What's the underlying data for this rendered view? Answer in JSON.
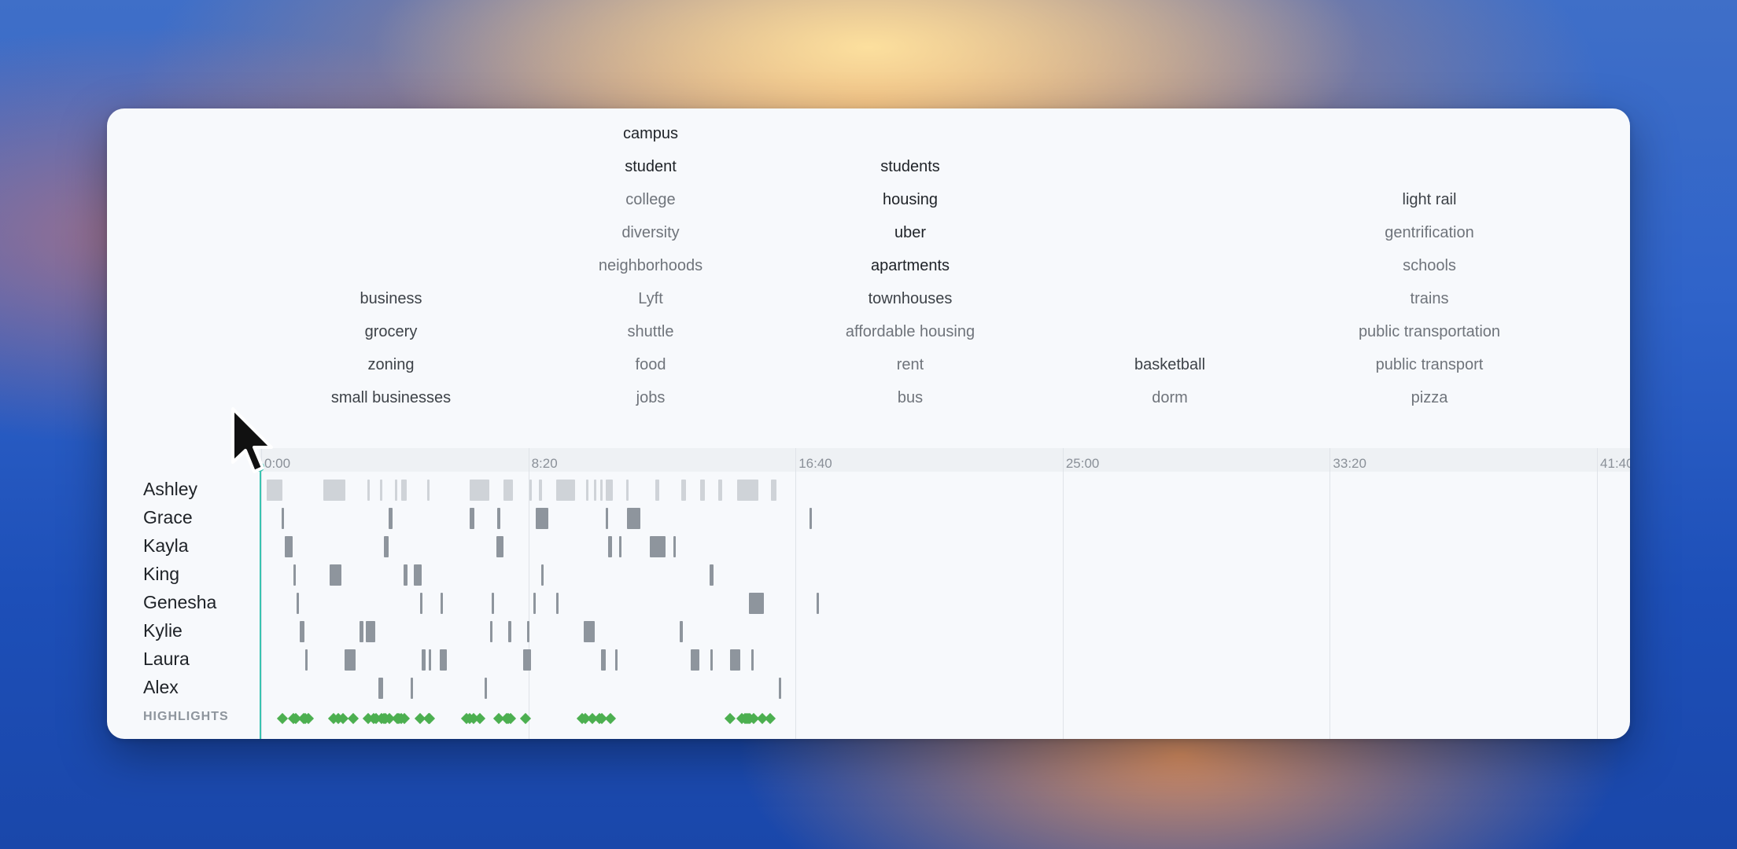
{
  "topic_columns": [
    {
      "center": 497,
      "words": [
        {
          "row": 5,
          "text": "business",
          "tone": "mid"
        },
        {
          "row": 6,
          "text": "grocery",
          "tone": "mid"
        },
        {
          "row": 7,
          "text": "zoning",
          "tone": "mid"
        },
        {
          "row": 8,
          "text": "small businesses",
          "tone": "mid"
        }
      ]
    },
    {
      "center": 827,
      "words": [
        {
          "row": 0,
          "text": "campus",
          "tone": "strong"
        },
        {
          "row": 1,
          "text": "student",
          "tone": "strong"
        },
        {
          "row": 2,
          "text": "college",
          "tone": "light"
        },
        {
          "row": 3,
          "text": "diversity",
          "tone": "light"
        },
        {
          "row": 4,
          "text": "neighborhoods",
          "tone": "light"
        },
        {
          "row": 5,
          "text": "Lyft",
          "tone": "light"
        },
        {
          "row": 6,
          "text": "shuttle",
          "tone": "light"
        },
        {
          "row": 7,
          "text": "food",
          "tone": "light"
        },
        {
          "row": 8,
          "text": "jobs",
          "tone": "light"
        }
      ]
    },
    {
      "center": 1157,
      "words": [
        {
          "row": 1,
          "text": "students",
          "tone": "strong"
        },
        {
          "row": 2,
          "text": "housing",
          "tone": "strong"
        },
        {
          "row": 3,
          "text": "uber",
          "tone": "strong"
        },
        {
          "row": 4,
          "text": "apartments",
          "tone": "strong"
        },
        {
          "row": 5,
          "text": "townhouses",
          "tone": "mid"
        },
        {
          "row": 6,
          "text": "affordable housing",
          "tone": "light"
        },
        {
          "row": 7,
          "text": "rent",
          "tone": "light"
        },
        {
          "row": 8,
          "text": "bus",
          "tone": "light"
        }
      ]
    },
    {
      "center": 1487,
      "words": [
        {
          "row": 7,
          "text": "basketball",
          "tone": "mid"
        },
        {
          "row": 8,
          "text": "dorm",
          "tone": "light"
        }
      ]
    },
    {
      "center": 1817,
      "words": [
        {
          "row": 2,
          "text": "light rail",
          "tone": "mid"
        },
        {
          "row": 3,
          "text": "gentrification",
          "tone": "light"
        },
        {
          "row": 4,
          "text": "schools",
          "tone": "light"
        },
        {
          "row": 5,
          "text": "trains",
          "tone": "light"
        },
        {
          "row": 6,
          "text": "public transportation",
          "tone": "light"
        },
        {
          "row": 7,
          "text": "public transport",
          "tone": "light"
        },
        {
          "row": 8,
          "text": "pizza",
          "tone": "light"
        }
      ]
    }
  ],
  "timeline": {
    "total_seconds": 2550,
    "ticks": [
      "0:00",
      "8:20",
      "16:40",
      "25:00",
      "33:20",
      "41:40"
    ],
    "playhead_seconds": 0
  },
  "speakers": [
    {
      "name": "Ashley",
      "shade": "light",
      "segments": [
        [
          10,
          40
        ],
        [
          117,
          157
        ],
        [
          199,
          202
        ],
        [
          222,
          226
        ],
        [
          250,
          253
        ],
        [
          262,
          272
        ],
        [
          310,
          314
        ],
        [
          390,
          427
        ],
        [
          454,
          471
        ],
        [
          502,
          506
        ],
        [
          520,
          525
        ],
        [
          552,
          587
        ],
        [
          608,
          612
        ],
        [
          623,
          626
        ],
        [
          634,
          638
        ],
        [
          645,
          658
        ],
        [
          683,
          686
        ],
        [
          737,
          745
        ],
        [
          786,
          795
        ],
        [
          821,
          830
        ],
        [
          855,
          863
        ],
        [
          890,
          930
        ],
        [
          954,
          964
        ]
      ]
    },
    {
      "name": "Grace",
      "shade": "dark",
      "segments": [
        [
          39,
          43
        ],
        [
          239,
          246
        ],
        [
          390,
          399
        ],
        [
          442,
          447
        ],
        [
          514,
          538
        ],
        [
          645,
          648
        ],
        [
          685,
          710
        ],
        [
          1026,
          1031
        ]
      ]
    },
    {
      "name": "Kayla",
      "shade": "dark",
      "segments": [
        [
          44,
          59
        ],
        [
          230,
          238
        ],
        [
          440,
          454
        ],
        [
          650,
          657
        ],
        [
          670,
          673
        ],
        [
          727,
          757
        ],
        [
          771,
          776
        ]
      ]
    },
    {
      "name": "King",
      "shade": "dark",
      "segments": [
        [
          60,
          63
        ],
        [
          128,
          150
        ],
        [
          267,
          274
        ],
        [
          285,
          300
        ],
        [
          524,
          529
        ],
        [
          839,
          846
        ]
      ]
    },
    {
      "name": "Genesha",
      "shade": "dark",
      "segments": [
        [
          66,
          71
        ],
        [
          297,
          300
        ],
        [
          335,
          338
        ],
        [
          432,
          434
        ],
        [
          510,
          514
        ],
        [
          552,
          556
        ],
        [
          913,
          941
        ],
        [
          1039,
          1044
        ]
      ]
    },
    {
      "name": "Kylie",
      "shade": "dark",
      "segments": [
        [
          72,
          81
        ],
        [
          184,
          191
        ],
        [
          196,
          213
        ],
        [
          428,
          430
        ],
        [
          463,
          468
        ],
        [
          498,
          501
        ],
        [
          604,
          624
        ],
        [
          783,
          789
        ]
      ]
    },
    {
      "name": "Laura",
      "shade": "dark",
      "segments": [
        [
          83,
          87
        ],
        [
          156,
          176
        ],
        [
          300,
          308
        ],
        [
          314,
          318
        ],
        [
          334,
          347
        ],
        [
          490,
          505
        ],
        [
          636,
          645
        ],
        [
          662,
          664
        ],
        [
          804,
          820
        ],
        [
          840,
          844
        ],
        [
          878,
          897
        ],
        [
          917,
          922
        ]
      ]
    },
    {
      "name": "Alex",
      "shade": "dark",
      "segments": [
        [
          220,
          228
        ],
        [
          280,
          283
        ],
        [
          418,
          421
        ],
        [
          969,
          972
        ]
      ]
    }
  ],
  "highlights": {
    "label": "HIGHLIGHTS",
    "times": [
      40,
      60,
      65,
      80,
      83,
      88,
      135,
      145,
      153,
      172,
      200,
      210,
      215,
      225,
      229,
      233,
      240,
      255,
      258,
      262,
      268,
      298,
      313,
      315,
      385,
      390,
      397,
      410,
      445,
      460,
      463,
      467,
      495,
      600,
      606,
      620,
      633,
      637,
      653,
      877,
      900,
      905,
      908,
      911,
      914,
      921,
      938,
      953
    ]
  },
  "colors": {
    "accent_playhead": "#39c3b0",
    "highlight": "#4caf50",
    "segment_dark": "#8e959d",
    "segment_light": "#cfd3d8"
  }
}
